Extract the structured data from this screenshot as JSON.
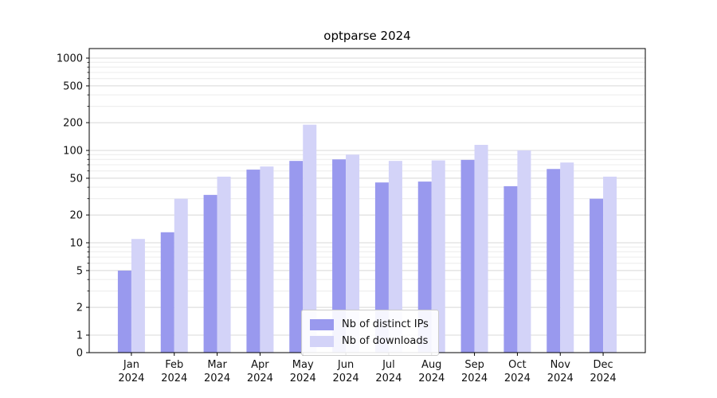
{
  "chart_data": {
    "type": "bar",
    "title": "optparse 2024",
    "categories": [
      "Jan",
      "Feb",
      "Mar",
      "Apr",
      "May",
      "Jun",
      "Jul",
      "Aug",
      "Sep",
      "Oct",
      "Nov",
      "Dec"
    ],
    "year": "2024",
    "series": [
      {
        "name": "Nb of distinct IPs",
        "color": "#9999ee",
        "values": [
          5,
          13,
          33,
          62,
          77,
          80,
          45,
          46,
          79,
          41,
          63,
          30
        ]
      },
      {
        "name": "Nb of downloads",
        "color": "#d3d3f8",
        "values": [
          11,
          30,
          52,
          67,
          190,
          90,
          77,
          78,
          115,
          100,
          74,
          52
        ]
      }
    ],
    "yscale": "symlog",
    "yticks": [
      0,
      1,
      2,
      5,
      10,
      20,
      50,
      100,
      200,
      500,
      1000
    ],
    "ylim": [
      0,
      1300
    ],
    "grid": true,
    "legend_position": "lower-center",
    "colors": {
      "grid_major": "#d8d8d8",
      "grid_minor": "#ececec",
      "axis": "#000000",
      "background": "#ffffff"
    }
  }
}
